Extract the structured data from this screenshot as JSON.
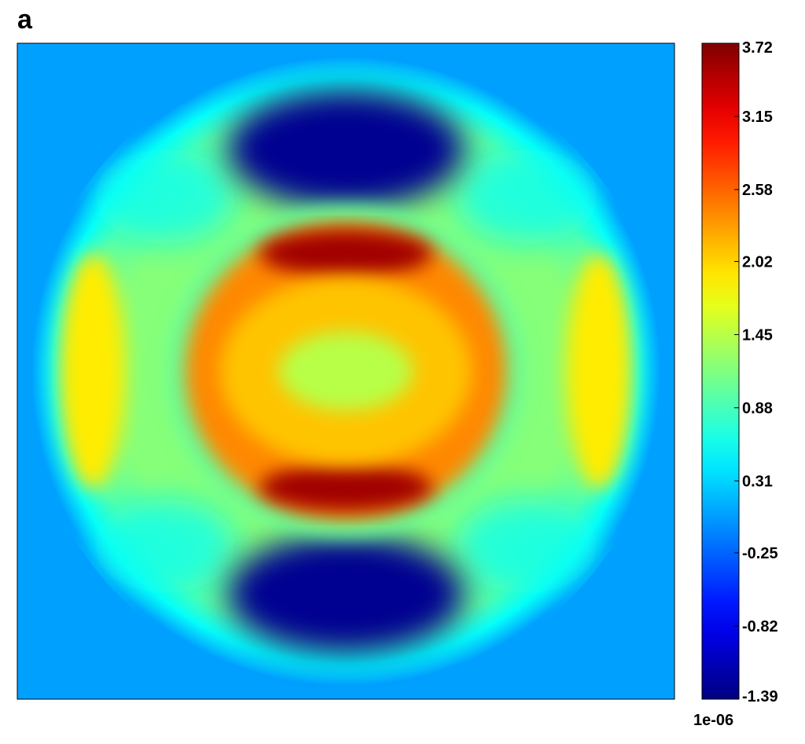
{
  "panel_label": "a",
  "chart_data": {
    "type": "heatmap",
    "title": "",
    "xlabel": "",
    "ylabel": "",
    "colormap": "jet",
    "colorbar": {
      "range": [
        -1.39,
        3.72
      ],
      "ticks": [
        3.72,
        3.15,
        2.58,
        2.02,
        1.45,
        0.88,
        0.31,
        -0.25,
        -0.82,
        -1.39
      ],
      "tick_labels": [
        "3.72",
        "3.15",
        "2.58",
        "2.02",
        "1.45",
        "0.88",
        "0.31",
        "-0.25",
        "-0.82",
        "-1.39"
      ],
      "multiplier": "1e-06",
      "placement": "right"
    },
    "background_value": 0.05,
    "field_features": [
      {
        "name": "central plateau",
        "value": 1.45
      },
      {
        "name": "peak ring",
        "value": 2.1
      },
      {
        "name": "upper red crest",
        "value": 3.55
      },
      {
        "name": "lower red crest",
        "value": 3.55
      },
      {
        "name": "upper blue trough",
        "value": -1.3
      },
      {
        "name": "lower blue trough",
        "value": -1.3
      },
      {
        "name": "left yellow lobe",
        "value": 1.9
      },
      {
        "name": "right yellow lobe",
        "value": 1.9
      }
    ],
    "colors": {
      "min": "#00008f",
      "low": "#0050ff",
      "mid_low": "#00d0c0",
      "mid": "#c8ff30",
      "mid_high": "#ffd000",
      "high": "#ff2000",
      "max": "#800000"
    }
  }
}
